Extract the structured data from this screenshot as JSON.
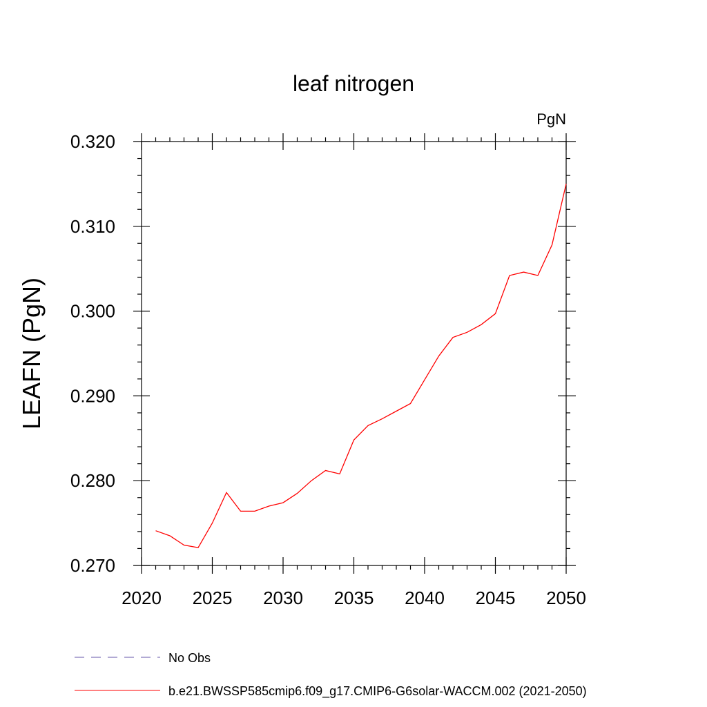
{
  "chart_data": {
    "type": "line",
    "title": "leaf nitrogen",
    "units_label": "PgN",
    "xlabel": "",
    "ylabel": "LEAFN  (PgN)",
    "xlim": [
      2020,
      2050
    ],
    "ylim": [
      0.27,
      0.32
    ],
    "x_ticks": [
      2020,
      2025,
      2030,
      2035,
      2040,
      2045,
      2050
    ],
    "x_tick_labels": [
      "2020",
      "2025",
      "2030",
      "2035",
      "2040",
      "2045",
      "2050"
    ],
    "y_ticks": [
      0.27,
      0.28,
      0.29,
      0.3,
      0.31,
      0.32
    ],
    "y_tick_labels": [
      "0.270",
      "0.280",
      "0.290",
      "0.300",
      "0.310",
      "0.320"
    ],
    "grid": false,
    "legend_position": "bottom",
    "series": [
      {
        "name": "b.e21.BWSSP585cmip6.f09_g17.CMIP6-G6solar-WACCM.002 (2021-2050)",
        "color": "#ff0000",
        "style": "solid",
        "x": [
          2021,
          2022,
          2023,
          2024,
          2025,
          2026,
          2027,
          2028,
          2029,
          2030,
          2031,
          2032,
          2033,
          2034,
          2035,
          2036,
          2037,
          2038,
          2039,
          2040,
          2041,
          2042,
          2043,
          2044,
          2045,
          2046,
          2047,
          2048,
          2049,
          2050
        ],
        "values": [
          0.2741,
          0.2735,
          0.2724,
          0.2721,
          0.275,
          0.2786,
          0.2764,
          0.2764,
          0.277,
          0.2774,
          0.2785,
          0.28,
          0.2812,
          0.2808,
          0.2848,
          0.2865,
          0.2873,
          0.2882,
          0.2891,
          0.2919,
          0.2947,
          0.2969,
          0.2975,
          0.2984,
          0.2997,
          0.3042,
          0.3046,
          0.3042,
          0.3078,
          0.315
        ]
      }
    ],
    "legend": [
      {
        "label": "No Obs",
        "color": "#6655aa",
        "style": "dashed"
      },
      {
        "label": "b.e21.BWSSP585cmip6.f09_g17.CMIP6-G6solar-WACCM.002 (2021-2050)",
        "color": "#ff0000",
        "style": "solid"
      }
    ]
  }
}
